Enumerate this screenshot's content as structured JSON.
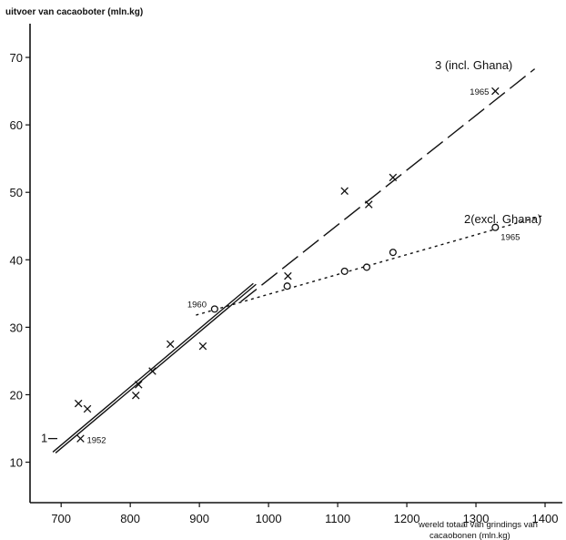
{
  "chart_data": {
    "type": "scatter",
    "ylabel": "uitvoer van cacaoboter (mln.kg)",
    "xlabel_lines": [
      "wereld totaal van grindings van",
      "cacaobonen (mln.kg)"
    ],
    "xlim": [
      655,
      1425
    ],
    "ylim": [
      4,
      75
    ],
    "xticks": [
      700,
      800,
      900,
      1000,
      1100,
      1200,
      1300,
      1400
    ],
    "yticks": [
      10,
      20,
      30,
      40,
      50,
      60,
      70
    ],
    "series": [
      {
        "marker": "x",
        "points": [
          {
            "x": 725,
            "y": 18.7
          },
          {
            "x": 738,
            "y": 17.9
          },
          {
            "x": 728,
            "y": 13.5
          },
          {
            "x": 808,
            "y": 19.9
          },
          {
            "x": 812,
            "y": 21.5
          },
          {
            "x": 832,
            "y": 23.5
          },
          {
            "x": 858,
            "y": 27.5
          },
          {
            "x": 905,
            "y": 27.2
          },
          {
            "x": 1028,
            "y": 37.6
          },
          {
            "x": 1110,
            "y": 50.2
          },
          {
            "x": 1145,
            "y": 48.2
          },
          {
            "x": 1180,
            "y": 52.2
          },
          {
            "x": 1328,
            "y": 65.0
          }
        ]
      },
      {
        "marker": "o",
        "points": [
          {
            "x": 922,
            "y": 32.7
          },
          {
            "x": 1027,
            "y": 36.1
          },
          {
            "x": 1110,
            "y": 38.3
          },
          {
            "x": 1142,
            "y": 38.9
          },
          {
            "x": 1180,
            "y": 41.1
          },
          {
            "x": 1328,
            "y": 44.8
          }
        ]
      }
    ],
    "lines": [
      {
        "label": "1",
        "style": "double-solid",
        "from": [
          688,
          11.5
        ],
        "to": [
          978,
          36.5
        ]
      },
      {
        "label": "3 (incl. Ghana)",
        "style": "dashed",
        "from": [
          960,
          33.8
        ],
        "to": [
          1385,
          68.3
        ]
      },
      {
        "label": "2(excl. Ghana)",
        "style": "dotted",
        "from": [
          895,
          31.8
        ],
        "to": [
          1395,
          46.5
        ]
      }
    ],
    "annotations": [
      "1952",
      "1960",
      "1965",
      "1965"
    ]
  }
}
